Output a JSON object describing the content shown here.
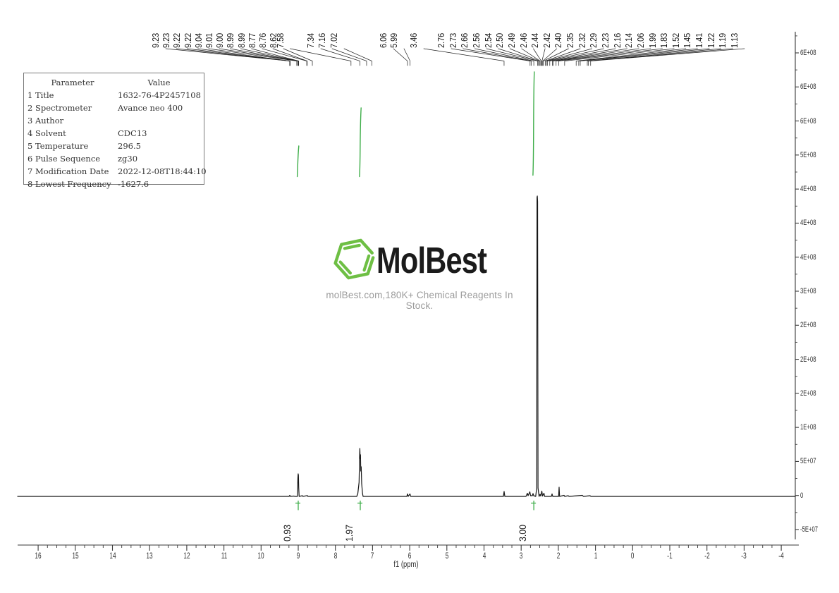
{
  "chart_data": {
    "type": "line",
    "description": "1H NMR spectrum trace with peak picking, integrals and intensity axis",
    "xlabel": "f1 (ppm)",
    "x_ticks": [
      16,
      15,
      14,
      13,
      12,
      11,
      10,
      9,
      8,
      7,
      6,
      5,
      4,
      3,
      2,
      1,
      0,
      -1,
      -2,
      -3,
      -4
    ],
    "x_range": [
      16,
      -4
    ],
    "x_minor_step": 0.25,
    "y_tick_labels": [
      "6E+08",
      "6E+08",
      "6E+08",
      "5E+08",
      "4E+08",
      "4E+08",
      "4E+08",
      "3E+08",
      "2E+08",
      "2E+08",
      "2E+08",
      "1E+08",
      "5E+07",
      "0",
      "-5E+07"
    ],
    "y_axis_values": [
      650000000.0,
      600000000.0,
      550000000.0,
      500000000.0,
      450000000.0,
      400000000.0,
      350000000.0,
      300000000.0,
      250000000.0,
      200000000.0,
      150000000.0,
      100000000.0,
      50000000.0,
      0,
      -50000000.0
    ],
    "grid": "off",
    "legend": "none",
    "peak_labels_ppm": [
      "9.23",
      "9.23",
      "9.22",
      "9.22",
      "9.04",
      "9.01",
      "9.00",
      "8.99",
      "8.99",
      "8.77",
      "8.76",
      "8.62",
      "7.58",
      "7.34",
      "7.16",
      "7.02",
      "6.06",
      "5.99",
      "3.46",
      "2.76",
      "2.73",
      "2.66",
      "2.56",
      "2.54",
      "2.50",
      "2.49",
      "2.46",
      "2.44",
      "2.42",
      "2.40",
      "2.35",
      "2.32",
      "2.29",
      "2.23",
      "2.16",
      "2.14",
      "2.06",
      "1.99",
      "1.83",
      "1.52",
      "1.45",
      "1.41",
      "1.22",
      "1.19",
      "1.13"
    ],
    "peaks": [
      {
        "ppm": 9.0,
        "intensity": 33000000.0
      },
      {
        "ppm": 7.34,
        "intensity": 70000000.0
      },
      {
        "ppm": 3.46,
        "intensity": 7000000.0
      },
      {
        "ppm": 2.57,
        "intensity": 441000000.0
      },
      {
        "ppm": 2.0,
        "intensity": 13000000.0
      }
    ],
    "integrals": [
      {
        "label": "0.93",
        "at_ppm": 9.0
      },
      {
        "label": "1.97",
        "at_ppm": 7.33
      },
      {
        "label": "3.00",
        "at_ppm": 2.66
      }
    ]
  },
  "parameter_table": {
    "headers": [
      "Parameter",
      "Value"
    ],
    "rows": [
      [
        "1 Title",
        "1632-76-4P2457108"
      ],
      [
        "2 Spectrometer",
        "Avance neo 400"
      ],
      [
        "3 Author",
        ""
      ],
      [
        "4 Solvent",
        "CDC13"
      ],
      [
        "5 Temperature",
        "296.5"
      ],
      [
        "6 Pulse Sequence",
        "zg30"
      ],
      [
        "7 Modification Date",
        "2022-12-08T18:44:10"
      ],
      [
        "8 Lowest Frequency",
        "-1627.6"
      ]
    ]
  },
  "watermark": {
    "brand": "MolBest",
    "tagline": "molBest.com,180K+ Chemical Reagents In Stock.",
    "logo_icon": "benzene-hexagon-icon"
  },
  "colors": {
    "integral_green": "#3fae4a",
    "logo_green": "#6ebf44",
    "trace_black": "#161616",
    "axis_gray": "#3a3a3a",
    "tagline_gray": "#9b9b9b"
  }
}
